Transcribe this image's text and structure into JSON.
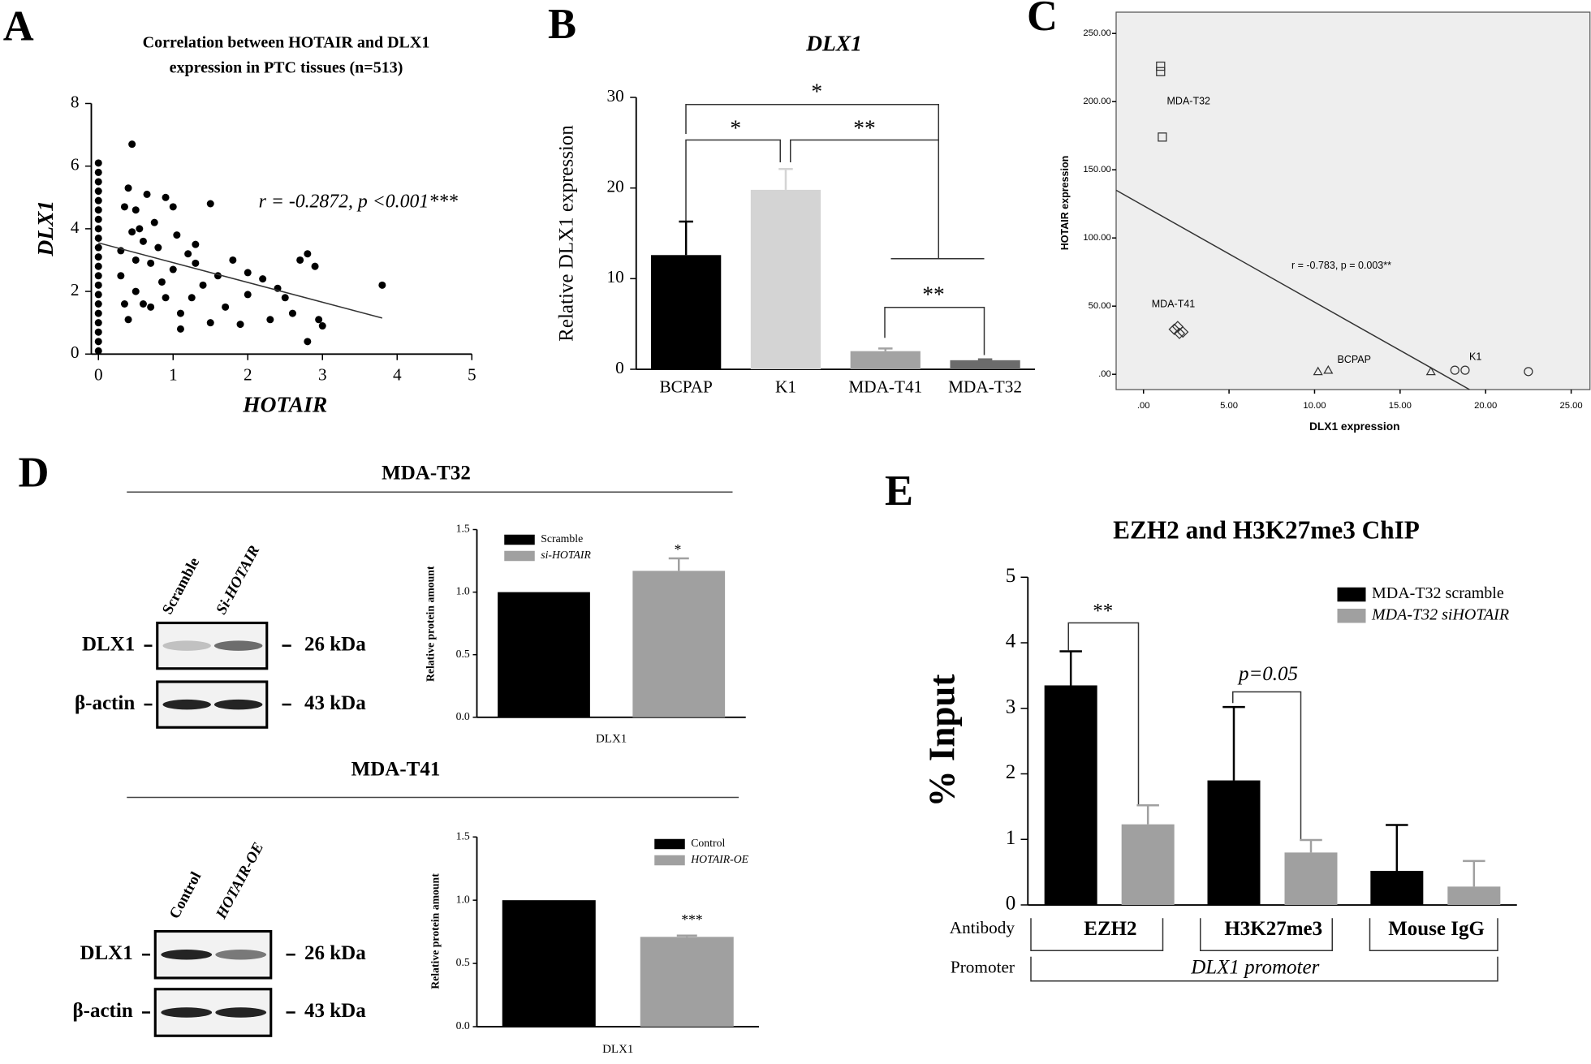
{
  "panels": [
    "A",
    "B",
    "C",
    "D",
    "E"
  ],
  "chart_data": [
    {
      "type": "scatter",
      "title": [
        "Correlation between HOTAIR and DLX1",
        "expression in PTC tissues (n=513)"
      ],
      "x": [
        0,
        0,
        0,
        0,
        0,
        0,
        0,
        0,
        0,
        0,
        0,
        0,
        0,
        0,
        0,
        0,
        0,
        0,
        0,
        0,
        0,
        0.3,
        0.3,
        0.35,
        0.4,
        0.45,
        0.4,
        0.5,
        0.5,
        0.5,
        0.55,
        0.6,
        0.6,
        0.7,
        0.7,
        0.75,
        0.8,
        0.85,
        0.9,
        0.9,
        1.0,
        1.0,
        1.05,
        1.1,
        1.2,
        1.25,
        1.3,
        1.4,
        1.5,
        1.5,
        1.6,
        1.7,
        1.8,
        2.0,
        2.2,
        2.3,
        2.5,
        2.6,
        2.7,
        2.8,
        2.9,
        2.95,
        3.0,
        3.8,
        2.8,
        2.0,
        1.9,
        1.3,
        0.45,
        0.35,
        0.65,
        2.4,
        1.1
      ],
      "values": [
        0.1,
        0.4,
        0.7,
        1.0,
        1.3,
        1.6,
        1.9,
        2.2,
        2.5,
        2.8,
        3.1,
        3.4,
        3.7,
        4.0,
        4.3,
        4.6,
        4.9,
        5.2,
        5.5,
        5.8,
        6.1,
        3.3,
        2.5,
        4.7,
        5.3,
        6.7,
        1.1,
        4.6,
        3.0,
        2.0,
        4.0,
        1.6,
        3.6,
        2.9,
        1.5,
        4.2,
        3.4,
        2.3,
        5.0,
        1.8,
        4.7,
        2.7,
        3.8,
        0.8,
        3.2,
        1.8,
        2.9,
        2.2,
        1.0,
        4.8,
        2.5,
        1.5,
        3.0,
        1.9,
        2.4,
        1.1,
        1.8,
        1.3,
        3.0,
        3.2,
        2.8,
        1.1,
        0.9,
        2.2,
        0.4,
        2.6,
        0.95,
        3.5,
        3.9,
        1.6,
        5.1,
        2.1,
        1.3
      ],
      "color": "#000000",
      "fit": {
        "x": [
          0,
          3.8
        ],
        "values": [
          3.55,
          1.15
        ]
      },
      "annotation": "r = -0.2872, p <0.001***",
      "xlabel": "HOTAIR",
      "ylabel": "DLX1",
      "xlim": [
        0,
        5
      ],
      "ylim": [
        0,
        8
      ],
      "xticks": [
        0,
        1,
        2,
        3,
        4,
        5
      ],
      "yticks": [
        0,
        2,
        4,
        6,
        8
      ]
    },
    {
      "type": "bar",
      "title": "DLX1",
      "categories": [
        "BCPAP",
        "K1",
        "MDA-T41",
        "MDA-T32"
      ],
      "values": [
        12.6,
        19.8,
        2.0,
        1.0
      ],
      "errors": [
        3.7,
        2.3,
        0.3,
        0.1
      ],
      "colors": [
        "#000000",
        "#d4d4d4",
        "#a3a3a3",
        "#6b6b6b"
      ],
      "ylabel": "Relative DLX1 expression",
      "ylim": [
        0,
        30
      ],
      "yticks": [
        0,
        10,
        20,
        30
      ],
      "annotations": [
        "*",
        "*",
        "**",
        "**"
      ]
    },
    {
      "type": "scatter",
      "background": "#eeeeee",
      "series": [
        {
          "name": "MDA-T32",
          "marker": "square",
          "x": [
            1.0,
            1.0,
            1.1
          ],
          "values": [
            226,
            222,
            174
          ]
        },
        {
          "name": "MDA-T41",
          "marker": "diamond",
          "x": [
            1.8,
            2.0,
            2.3,
            2.1
          ],
          "values": [
            33,
            35,
            31,
            30
          ]
        },
        {
          "name": "BCPAP",
          "marker": "triangle",
          "x": [
            10.2,
            10.8,
            16.8
          ],
          "values": [
            2,
            3,
            2
          ]
        },
        {
          "name": "K1",
          "marker": "circle",
          "x": [
            18.2,
            18.8,
            22.5
          ],
          "values": [
            3,
            3,
            2
          ]
        }
      ],
      "fit": {
        "x": [
          -1.6,
          19.06
        ],
        "values": [
          135,
          -11.2
        ]
      },
      "annotation": "r = -0.783, p = 0.003**",
      "xlabel": "DLX1 expression",
      "ylabel": "HOTAIR expression",
      "xlim": [
        -1.6,
        26.1
      ],
      "ylim": [
        -11.2,
        265.6
      ],
      "xticks": [
        {
          "value": 0,
          "label": ".00"
        },
        {
          "value": 5,
          "label": "5.00"
        },
        {
          "value": 10,
          "label": "10.00"
        },
        {
          "value": 15,
          "label": "15.00"
        },
        {
          "value": 20,
          "label": "20.00"
        },
        {
          "value": 25,
          "label": "25.00"
        }
      ],
      "yticks": [
        {
          "value": 0,
          "label": ".00"
        },
        {
          "value": 50,
          "label": "50.00"
        },
        {
          "value": 100,
          "label": "100.00"
        },
        {
          "value": 150,
          "label": "150.00"
        },
        {
          "value": 200,
          "label": "200.00"
        },
        {
          "value": 250,
          "label": "250.00"
        }
      ]
    },
    {
      "type": "bar",
      "categories": [
        "DLX1"
      ],
      "series": [
        {
          "name": "Scramble",
          "color": "#000000",
          "values": [
            1.0
          ]
        },
        {
          "name": "si-HOTAIR",
          "color": "#a0a0a0",
          "values": [
            1.17
          ],
          "errors": [
            0.1
          ]
        }
      ],
      "ylabel": "Relative protein amount",
      "ylim": [
        0,
        1.5
      ],
      "yticks": [
        {
          "value": 0,
          "label": "0.0"
        },
        0.5,
        {
          "value": 1,
          "label": "1.0"
        },
        1.5
      ],
      "annotations": [
        "*"
      ]
    },
    {
      "type": "bar",
      "categories": [
        "DLX1"
      ],
      "series": [
        {
          "name": "Control",
          "color": "#000000",
          "values": [
            1.0
          ]
        },
        {
          "name": "HOTAIR-OE",
          "color": "#a0a0a0",
          "values": [
            0.71
          ],
          "errors": [
            0.01
          ]
        }
      ],
      "ylabel": "Relative protein amount",
      "ylim": [
        0,
        1.5
      ],
      "yticks": [
        {
          "value": 0,
          "label": "0.0"
        },
        0.5,
        {
          "value": 1,
          "label": "1.0"
        },
        1.5
      ],
      "annotations": [
        "***"
      ]
    },
    {
      "type": "bar",
      "title": "EZH2 and H3K27me3 ChIP",
      "categories": [
        "EZH2",
        "H3K27me3",
        "Mouse IgG"
      ],
      "series": [
        {
          "name": "MDA-T32 scramble",
          "color": "#000000",
          "values": [
            3.35,
            1.9,
            0.52
          ],
          "errors": [
            0.52,
            1.12,
            0.7
          ]
        },
        {
          "name": "MDA-T32 siHOTAIR",
          "color": "#a0a0a0",
          "values": [
            1.23,
            0.8,
            0.28
          ],
          "errors": [
            0.29,
            0.19,
            0.39
          ]
        }
      ],
      "ylabel": "% Input",
      "ylim": [
        0,
        5
      ],
      "yticks": [
        0,
        1,
        2,
        3,
        4,
        5
      ],
      "annotations": [
        "**",
        "p=0.05"
      ],
      "row_labels": [
        "Antibody",
        "Promoter"
      ],
      "group_label": "DLX1 promoter"
    }
  ],
  "blots": [
    {
      "header": "MDA-T32",
      "lanes": [
        "Scramble",
        "Si-HOTAIR"
      ],
      "rows": [
        "DLX1",
        "β-actin"
      ],
      "sizes": [
        "26 kDa",
        "43 kDa"
      ]
    },
    {
      "header": "MDA-T41",
      "lanes": [
        "Control",
        "HOTAIR-OE"
      ],
      "rows": [
        "DLX1",
        "β-actin"
      ],
      "sizes": [
        "26 kDa",
        "43 kDa"
      ]
    }
  ]
}
